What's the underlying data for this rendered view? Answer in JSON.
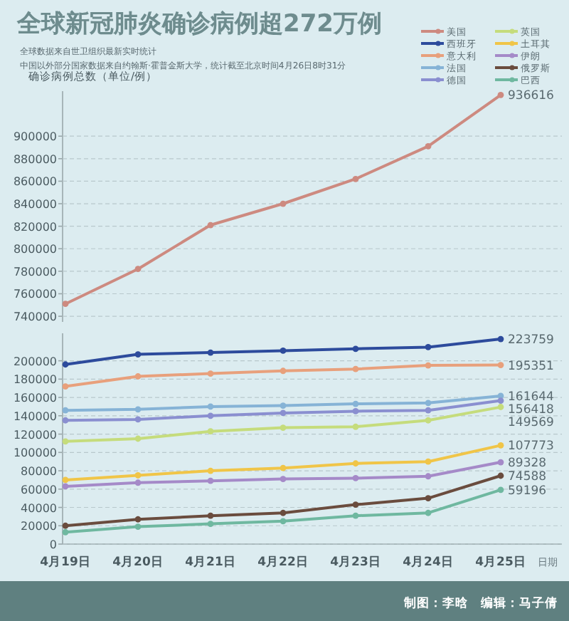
{
  "chart_data": [
    {
      "type": "line",
      "title": "全球新冠肺炎确诊病例超272万例",
      "subtitle": "全球数据来自世卫组织最新实时统计",
      "annotations": [
        "中国以外部分国家数据来自约翰斯·霍普金斯大学，统计截至北京时间4月26日8时31分"
      ],
      "ylabel": "确诊病例总数（单位/例）",
      "ylim": [
        735000,
        940000
      ],
      "yticks": [
        740000,
        760000,
        780000,
        800000,
        820000,
        840000,
        860000,
        880000,
        900000
      ],
      "tick_labels": "y",
      "grid": "y",
      "marker": "circle",
      "legend": "top right",
      "series": [
        {
          "name": "美国",
          "color": "#cd8a80",
          "values": [
            751000,
            782000,
            821000,
            840000,
            862000,
            891000,
            936616
          ],
          "value_labels": [
            null,
            null,
            null,
            null,
            null,
            null,
            "936616"
          ]
        }
      ]
    },
    {
      "type": "line",
      "xlabel": "日期",
      "annotations": [
        "制图：李晗　编辑：马子倩"
      ],
      "categories": [
        "4月19日",
        "4月20日",
        "4月21日",
        "4月22日",
        "4月23日",
        "4月24日",
        "4月25日"
      ],
      "ylim": [
        0,
        230000
      ],
      "yticks": [
        0,
        20000,
        40000,
        60000,
        80000,
        100000,
        120000,
        140000,
        160000,
        180000,
        200000
      ],
      "grid": "y",
      "marker": "circle",
      "legend": "top right",
      "series": [
        {
          "name": "西班牙",
          "color": "#2d4b9c",
          "values": [
            196000,
            207000,
            209000,
            211000,
            213000,
            215000,
            223759
          ],
          "value_labels": [
            null,
            null,
            null,
            null,
            null,
            null,
            "223759"
          ]
        },
        {
          "name": "意大利",
          "color": "#e8a07c",
          "values": [
            172000,
            183000,
            186000,
            189000,
            191000,
            195000,
            195351
          ],
          "value_labels": [
            null,
            null,
            null,
            null,
            null,
            null,
            "195351"
          ]
        },
        {
          "name": "法国",
          "color": "#86b3d6",
          "values": [
            146000,
            147000,
            150000,
            151000,
            153000,
            154000,
            161644
          ],
          "value_labels": [
            null,
            null,
            null,
            null,
            null,
            null,
            "161644"
          ]
        },
        {
          "name": "德国",
          "color": "#8a8fd0",
          "values": [
            135000,
            136000,
            140000,
            143000,
            145000,
            146000,
            156418
          ],
          "value_labels": [
            null,
            null,
            null,
            null,
            null,
            null,
            "156418"
          ]
        },
        {
          "name": "英国",
          "color": "#c5dc7c",
          "values": [
            112000,
            115000,
            123000,
            127000,
            128000,
            135000,
            149569
          ],
          "value_labels": [
            null,
            null,
            null,
            null,
            null,
            null,
            "149569"
          ]
        },
        {
          "name": "土耳其",
          "color": "#f0c548",
          "values": [
            70000,
            75000,
            80000,
            83000,
            88000,
            90000,
            107773
          ],
          "value_labels": [
            null,
            null,
            null,
            null,
            null,
            null,
            "107773"
          ]
        },
        {
          "name": "伊朗",
          "color": "#a58ac8",
          "values": [
            63000,
            67000,
            69000,
            71000,
            72000,
            74000,
            89328
          ],
          "value_labels": [
            null,
            null,
            null,
            null,
            null,
            null,
            "89328"
          ]
        },
        {
          "name": "俄罗斯",
          "color": "#6a4c3e",
          "values": [
            20000,
            27000,
            31000,
            34000,
            43000,
            50000,
            74588
          ],
          "value_labels": [
            null,
            null,
            null,
            null,
            null,
            null,
            "74588"
          ]
        },
        {
          "name": "巴西",
          "color": "#6fb8a0",
          "values": [
            13000,
            19000,
            22000,
            25000,
            31000,
            34000,
            59196
          ],
          "value_labels": [
            null,
            null,
            null,
            null,
            null,
            null,
            "59196"
          ]
        }
      ]
    }
  ]
}
